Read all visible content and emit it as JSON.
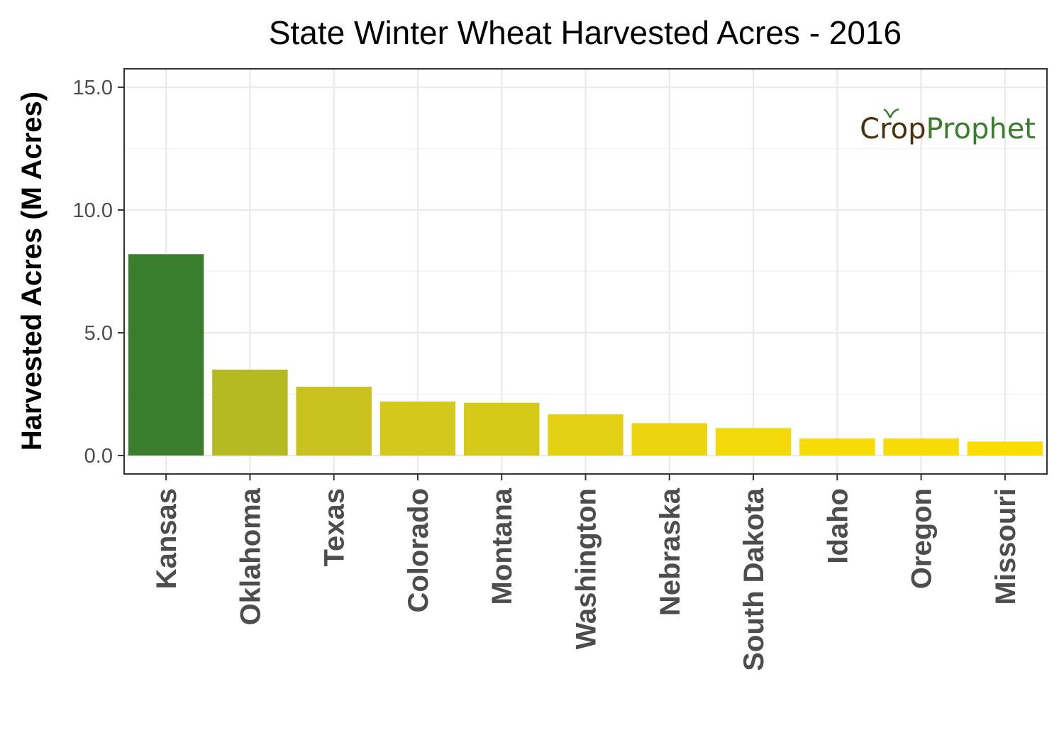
{
  "chart_data": {
    "type": "bar",
    "title": "State Winter Wheat Harvested Acres - 2016",
    "xlabel": "",
    "ylabel": "Harvested Acres (M Acres)",
    "categories": [
      "Kansas",
      "Oklahoma",
      "Texas",
      "Colorado",
      "Montana",
      "Washington",
      "Nebraska",
      "South Dakota",
      "Idaho",
      "Oregon",
      "Missouri"
    ],
    "values": [
      8.2,
      3.5,
      2.8,
      2.2,
      2.15,
      1.68,
      1.32,
      1.12,
      0.7,
      0.7,
      0.57
    ],
    "ylim": [
      -0.75,
      15.75
    ],
    "yticks": [
      0.0,
      5.0,
      10.0,
      15.0
    ],
    "ytick_labels": [
      "0.0",
      "5.0",
      "10.0",
      "15.0"
    ],
    "grid": true,
    "bar_colors": [
      "#3a7d2c",
      "#b5ba22",
      "#c8c11e",
      "#d3c81b",
      "#d6ca18",
      "#e3d014",
      "#ecd510",
      "#f3d90a",
      "#f7db06",
      "#f7db06",
      "#fbdd02"
    ]
  },
  "logo": {
    "part1": "Crop",
    "part2": "Prophet"
  }
}
